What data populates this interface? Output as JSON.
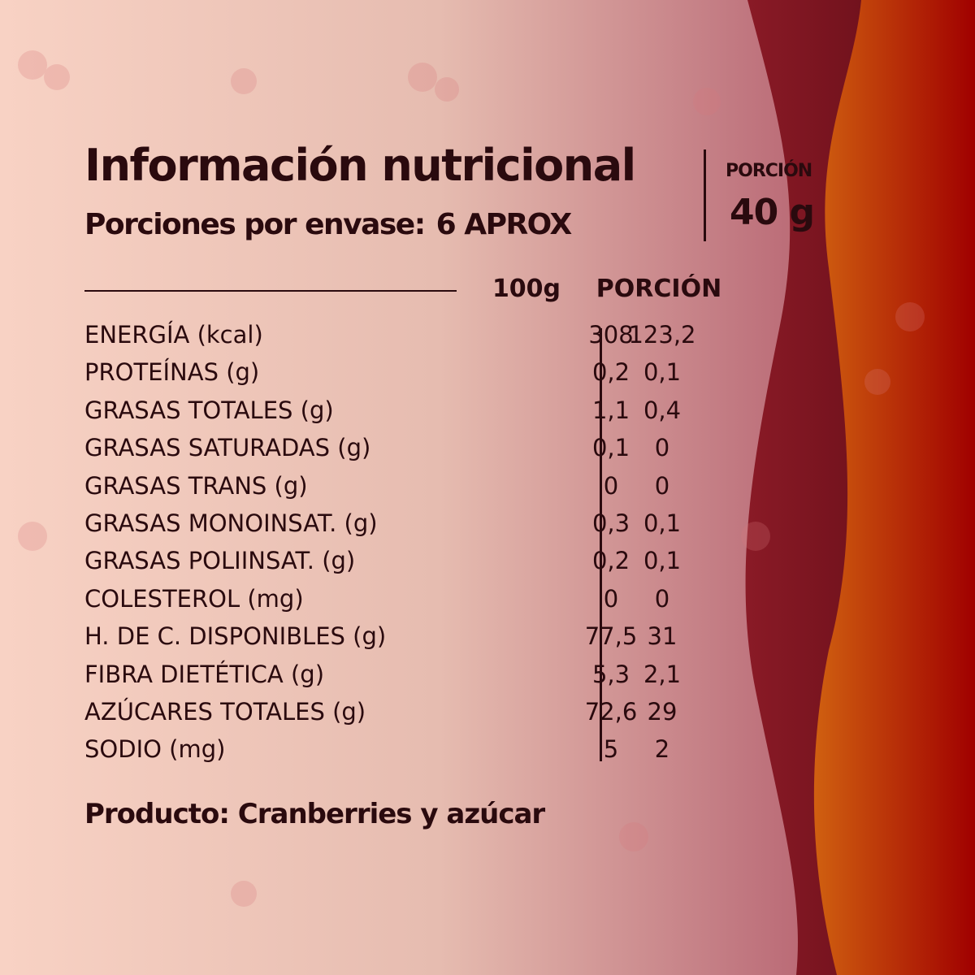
{
  "header": {
    "title": "Información nutricional",
    "servings_label": "Porciones por envase:",
    "servings_value": "6 APROX",
    "portion_label": "PORCIÓN",
    "portion_value": "40 g"
  },
  "table": {
    "columns": [
      "100g",
      "PORCIÓN"
    ],
    "rows": [
      {
        "name": "ENERGÍA (kcal)",
        "per100": "308",
        "portion": "123,2"
      },
      {
        "name": "PROTEÍNAS (g)",
        "per100": "0,2",
        "portion": "0,1"
      },
      {
        "name": "GRASAS TOTALES (g)",
        "per100": "1,1",
        "portion": "0,4"
      },
      {
        "name": "GRASAS SATURADAS (g)",
        "per100": "0,1",
        "portion": "0"
      },
      {
        "name": "GRASAS TRANS (g)",
        "per100": "0",
        "portion": "0"
      },
      {
        "name": "GRASAS MONOINSAT. (g)",
        "per100": "0,3",
        "portion": "0,1"
      },
      {
        "name": "GRASAS POLIINSAT. (g)",
        "per100": "0,2",
        "portion": "0,1"
      },
      {
        "name": "COLESTEROL (mg)",
        "per100": "0",
        "portion": "0"
      },
      {
        "name": "H. DE C. DISPONIBLES (g)",
        "per100": "77,5",
        "portion": "31"
      },
      {
        "name": "FIBRA DIETÉTICA (g)",
        "per100": "5,3",
        "portion": "2,1"
      },
      {
        "name": "AZÚCARES TOTALES (g)",
        "per100": "72,6",
        "portion": "29"
      },
      {
        "name": "SODIO (mg)",
        "per100": "5",
        "portion": "2"
      }
    ]
  },
  "footer": {
    "product": "Producto: Cranberries y azúcar"
  },
  "colors": {
    "text": "#2a0a0e",
    "bg_light": "#f6d0c2",
    "bg_pink": "#b8606e",
    "maroon": "#6a0e1a",
    "orange": "#c24a06",
    "red": "#a00000"
  }
}
